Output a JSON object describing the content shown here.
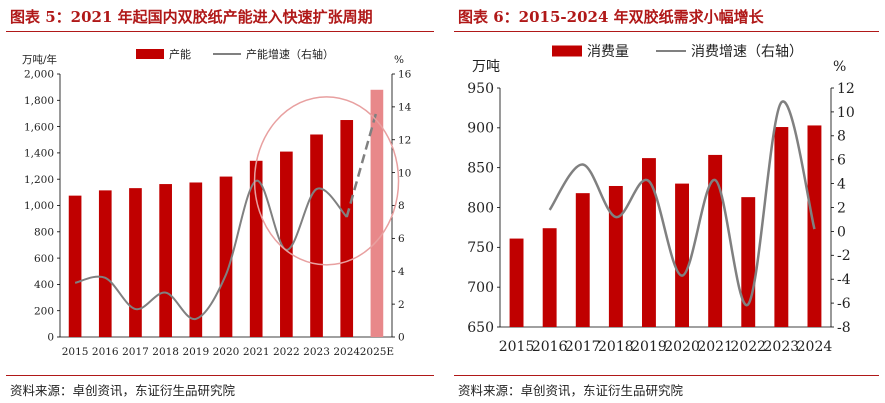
{
  "source": "资料来源：卓创资讯，东证衍生品研究院",
  "chart_data": [
    {
      "type": "bar",
      "title": "图表 5：2021 年起国内双胶纸产能进入快速扩张周期",
      "categories": [
        "2015",
        "2016",
        "2017",
        "2018",
        "2019",
        "2020",
        "2021",
        "2022",
        "2023",
        "2024",
        "2025E"
      ],
      "y_unit": "万吨/年",
      "y2_unit": "%",
      "ylim": [
        0,
        2000
      ],
      "yticks": [
        "0",
        "200",
        "400",
        "600",
        "800",
        "1,000",
        "1,200",
        "1,400",
        "1,600",
        "1,800",
        "2,000"
      ],
      "y2lim": [
        0,
        16
      ],
      "y2ticks": [
        "0",
        "2",
        "4",
        "6",
        "8",
        "10",
        "12",
        "14",
        "16"
      ],
      "legend": [
        "产能",
        "产能增速（右轴）"
      ],
      "series": [
        {
          "name": "产能",
          "kind": "bar",
          "color": "#c00000",
          "highlight_color": "#e8888a",
          "values": [
            1075,
            1115,
            1132,
            1163,
            1175,
            1220,
            1340,
            1410,
            1540,
            1650,
            1880
          ]
        },
        {
          "name": "产能增速（右轴）",
          "kind": "line",
          "axis": "right",
          "color": "#808080",
          "values": [
            3.3,
            3.6,
            1.7,
            2.7,
            1.1,
            3.8,
            9.5,
            5.3,
            9.0,
            7.3,
            13.8
          ],
          "dashed_from_index": 9
        }
      ],
      "annotation": "circle"
    },
    {
      "type": "bar",
      "title": "图表 6：2015-2024 年双胶纸需求小幅增长",
      "categories": [
        "2015",
        "2016",
        "2017",
        "2018",
        "2019",
        "2020",
        "2021",
        "2022",
        "2023",
        "2024"
      ],
      "y_unit": "万吨",
      "y2_unit": "%",
      "ylim": [
        650,
        950
      ],
      "yticks": [
        "650",
        "700",
        "750",
        "800",
        "850",
        "900",
        "950"
      ],
      "y2lim": [
        -8,
        12
      ],
      "y2ticks": [
        "-8",
        "-6",
        "-4",
        "-2",
        "0",
        "2",
        "4",
        "6",
        "8",
        "10",
        "12"
      ],
      "legend": [
        "消费量",
        "消费增速（右轴）"
      ],
      "series": [
        {
          "name": "消费量",
          "kind": "bar",
          "color": "#c00000",
          "values": [
            761,
            774,
            818,
            827,
            862,
            830,
            866,
            813,
            901,
            903
          ]
        },
        {
          "name": "消费增速（右轴）",
          "kind": "line",
          "axis": "right",
          "color": "#808080",
          "values": [
            null,
            1.8,
            5.6,
            1.2,
            4.2,
            -3.7,
            4.3,
            -6.1,
            10.8,
            0.2
          ]
        }
      ]
    }
  ]
}
